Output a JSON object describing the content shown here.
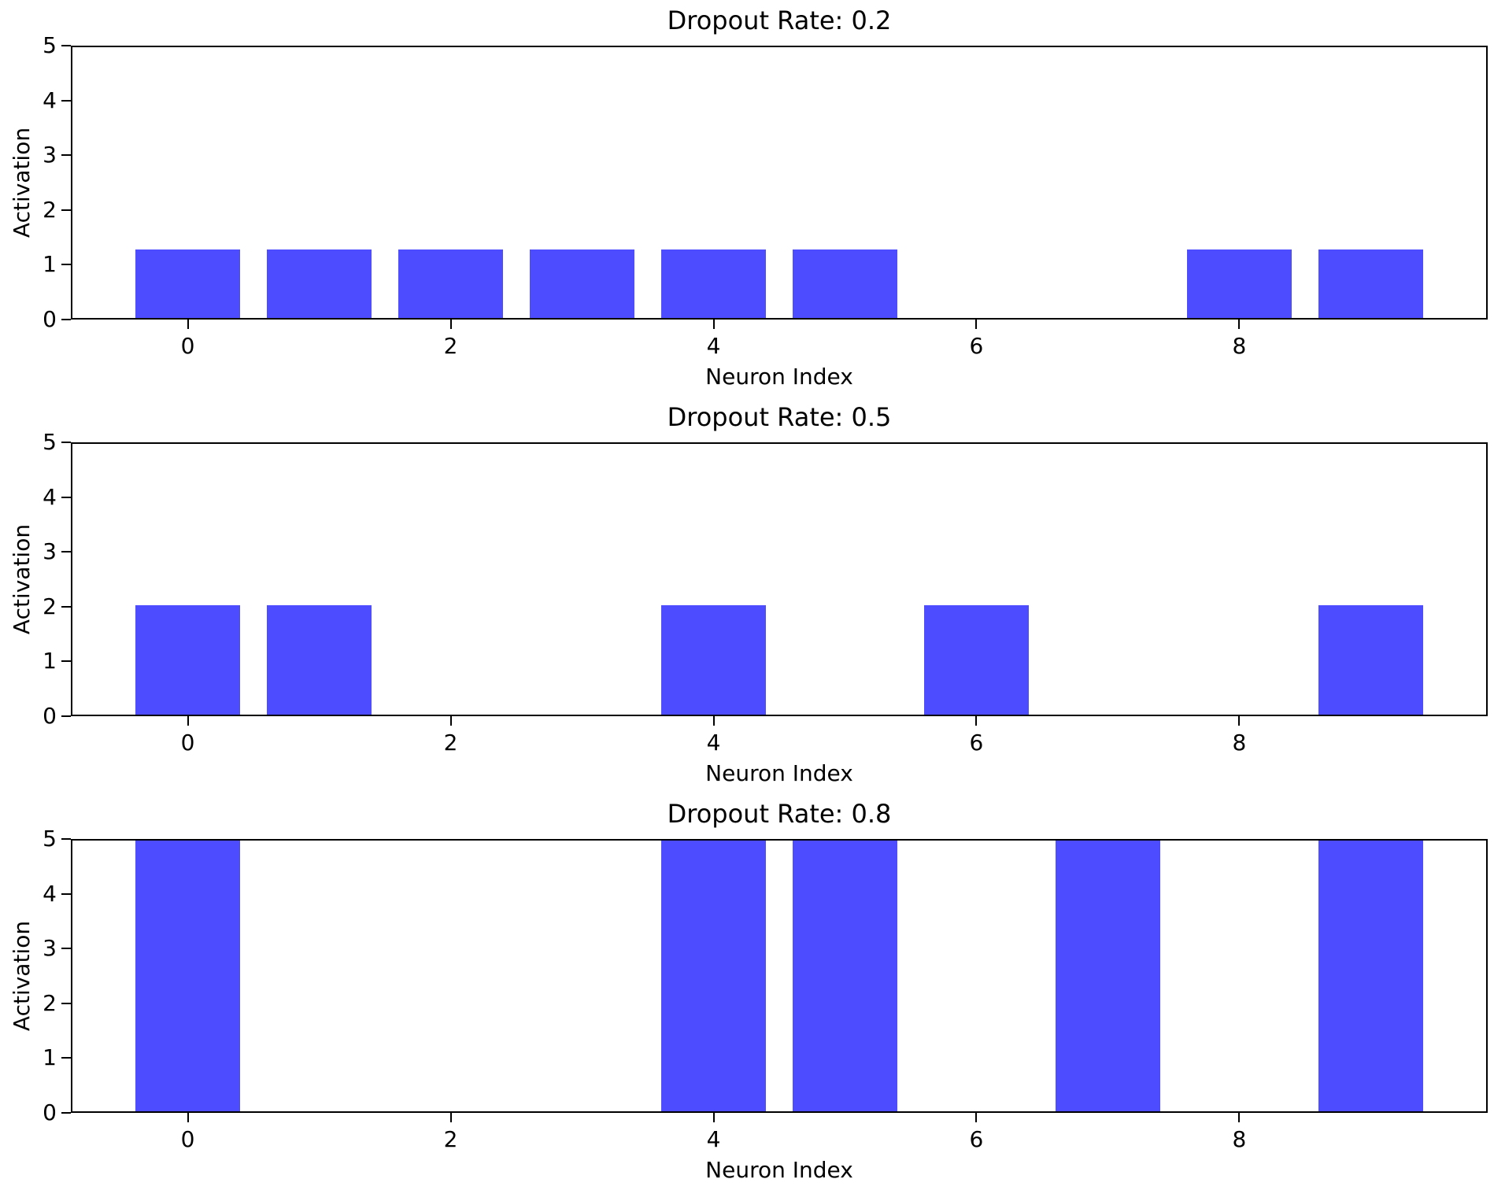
{
  "figure": {
    "background": "#ffffff",
    "axis_color": "#000000",
    "text_color": "#000000",
    "bar_color": "#4d4dff"
  },
  "chart_data": [
    {
      "type": "bar",
      "title": "Dropout Rate: 0.2",
      "xlabel": "Neuron Index",
      "ylabel": "Activation",
      "categories": [
        0,
        1,
        2,
        3,
        4,
        5,
        6,
        7,
        8,
        9
      ],
      "values": [
        1.25,
        1.25,
        1.25,
        1.25,
        1.25,
        1.25,
        0,
        0,
        1.25,
        1.25
      ],
      "bar_width": 0.8,
      "bar_color": "#4d4dff",
      "xlim": [
        -0.89,
        9.89
      ],
      "ylim": [
        0,
        5
      ],
      "xticks": [
        0,
        2,
        4,
        6,
        8
      ],
      "yticks": [
        0,
        1,
        2,
        3,
        4,
        5
      ],
      "grid": false,
      "legend": null
    },
    {
      "type": "bar",
      "title": "Dropout Rate: 0.5",
      "xlabel": "Neuron Index",
      "ylabel": "Activation",
      "categories": [
        0,
        1,
        2,
        3,
        4,
        5,
        6,
        7,
        8,
        9
      ],
      "values": [
        2,
        2,
        0,
        0,
        2,
        0,
        2,
        0,
        0,
        2
      ],
      "bar_width": 0.8,
      "bar_color": "#4d4dff",
      "xlim": [
        -0.89,
        9.89
      ],
      "ylim": [
        0,
        5
      ],
      "xticks": [
        0,
        2,
        4,
        6,
        8
      ],
      "yticks": [
        0,
        1,
        2,
        3,
        4,
        5
      ],
      "grid": false,
      "legend": null
    },
    {
      "type": "bar",
      "title": "Dropout Rate: 0.8",
      "xlabel": "Neuron Index",
      "ylabel": "Activation",
      "categories": [
        0,
        1,
        2,
        3,
        4,
        5,
        6,
        7,
        8,
        9
      ],
      "values": [
        5,
        0,
        0,
        0,
        5,
        5,
        0,
        5,
        0,
        5
      ],
      "bar_width": 0.8,
      "bar_color": "#4d4dff",
      "xlim": [
        -0.89,
        9.89
      ],
      "ylim": [
        0,
        5
      ],
      "xticks": [
        0,
        2,
        4,
        6,
        8
      ],
      "yticks": [
        0,
        1,
        2,
        3,
        4,
        5
      ],
      "grid": false,
      "legend": null
    }
  ]
}
